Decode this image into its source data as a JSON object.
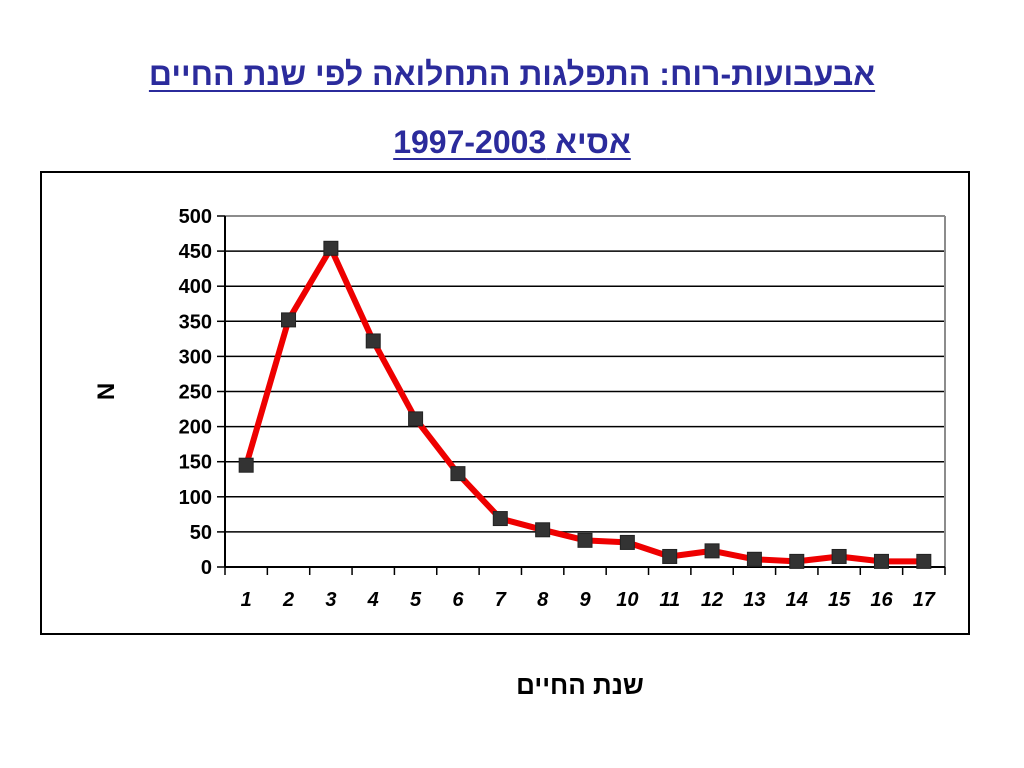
{
  "chart_data": {
    "type": "line",
    "title": "אבעבועות-רוח: התפלגות התחלואה לפי שנת החיים",
    "subtitle": "אסיא 1997-2003",
    "xlabel": "שנת החיים",
    "ylabel": "N",
    "categories": [
      "1",
      "2",
      "3",
      "4",
      "5",
      "6",
      "7",
      "8",
      "9",
      "10",
      "11",
      "12",
      "13",
      "14",
      "15",
      "16",
      "17"
    ],
    "series": [
      {
        "values": [
          145,
          352,
          454,
          322,
          211,
          133,
          69,
          53,
          38,
          35,
          15,
          23,
          11,
          8,
          15,
          8,
          8
        ]
      }
    ],
    "ylim": [
      0,
      500
    ],
    "yticks": [
      "0",
      "50",
      "100",
      "150",
      "200",
      "250",
      "300",
      "350",
      "400",
      "450",
      "500"
    ],
    "grid": true,
    "line_color": "#ee0000",
    "marker_color": "#333333"
  }
}
